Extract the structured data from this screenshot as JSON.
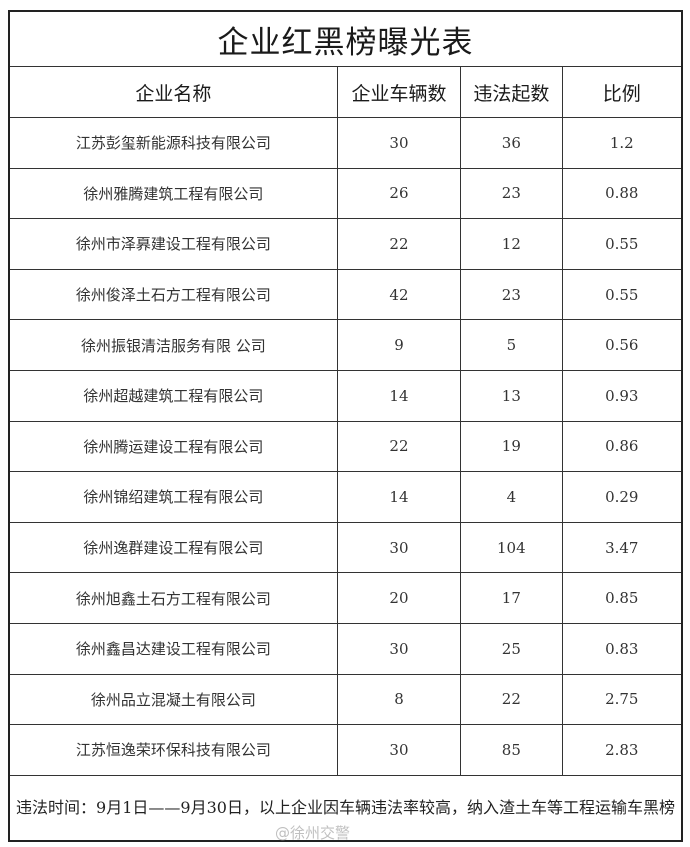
{
  "title": "企业红黑榜曝光表",
  "headers": [
    "企业名称",
    "企业车辆数",
    "违法起数",
    "比例"
  ],
  "rows": [
    [
      "江苏彭玺新能源科技有限公司",
      "30",
      "36",
      "1.2"
    ],
    [
      "徐州雅腾建筑工程有限公司",
      "26",
      "23",
      "0.88"
    ],
    [
      "徐州市泽奡建设工程有限公司",
      "22",
      "12",
      "0.55"
    ],
    [
      "徐州俊泽土石方工程有限公司",
      "42",
      "23",
      "0.55"
    ],
    [
      "徐州振银清洁服务有限 公司",
      "9",
      "5",
      "0.56"
    ],
    [
      "徐州超越建筑工程有限公司",
      "14",
      "13",
      "0.93"
    ],
    [
      "徐州腾运建设工程有限公司",
      "22",
      "19",
      "0.86"
    ],
    [
      "徐州锦绍建筑工程有限公司",
      "14",
      "4",
      "0.29"
    ],
    [
      "徐州逸群建设工程有限公司",
      "30",
      "104",
      "3.47"
    ],
    [
      "徐州旭鑫土石方工程有限公司",
      "20",
      "17",
      "0.85"
    ],
    [
      "徐州鑫昌达建设工程有限公司",
      "30",
      "25",
      "0.83"
    ],
    [
      "徐州品立混凝土有限公司",
      "8",
      "22",
      "2.75"
    ],
    [
      "江苏恒逸荣环保科技有限公司",
      "30",
      "85",
      "2.83"
    ]
  ],
  "footer": "违法时间：9月1日——9月30日，以上企业因车辆违法率较高，纳入渣土车等工程运输车黑榜",
  "watermark": "@徐州交警"
}
